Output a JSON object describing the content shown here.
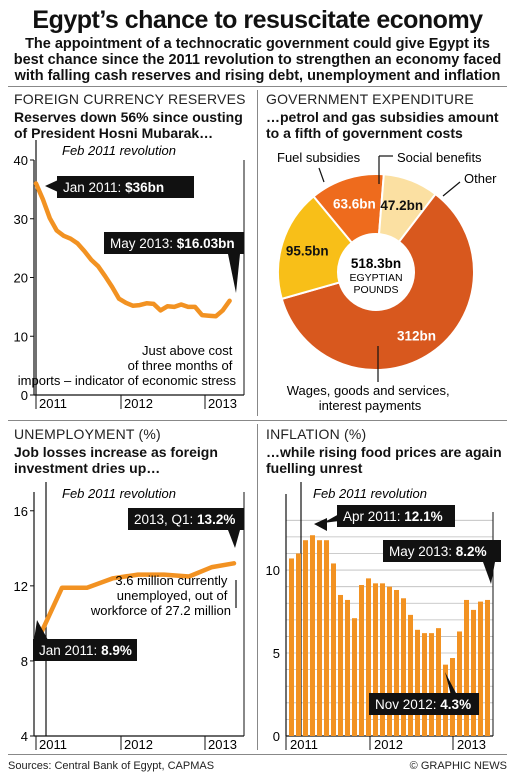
{
  "title": "Egypt’s chance to resuscitate economy",
  "subtitle": "The appointment of a technocratic government could give Egypt its best chance since the 2011 revolution to strengthen an economy faced with falling cash reserves and rising debt, unemployment and inflation",
  "reserves": {
    "heading": "FOREIGN CURRENCY RESERVES",
    "subheading": "Reserves down 56% since ousting of President Hosni Mubarak…",
    "event_label": "Feb 2011 revolution",
    "callout_start_prefix": "Jan 2011: ",
    "callout_start_value": "$36bn",
    "callout_end_prefix": "May 2013: ",
    "callout_end_value": "$16.03bn",
    "note": "Just above cost of three months of imports – indicator of economic stress"
  },
  "expenditure": {
    "heading": "GOVERNMENT EXPENDITURE",
    "subheading": "…petrol and gas subsidies amount to a fifth of government costs",
    "center_value": "518.3bn",
    "center_unit": "EGYPTIAN POUNDS",
    "labels": {
      "fuel": "Fuel subsidies",
      "social": "Social benefits",
      "other": "Other",
      "wages": "Wages, goods and services, interest payments"
    }
  },
  "unemployment": {
    "heading": "UNEMPLOYMENT (%)",
    "subheading": "Job losses increase as foreign investment dries up…",
    "event_label": "Feb 2011 revolution",
    "callout_start_prefix": "Jan 2011: ",
    "callout_start_value": "8.9%",
    "callout_end_prefix": "2013, Q1: ",
    "callout_end_value": "13.2%",
    "note": "3.6 million currently unemployed, out of workforce of 27.2 million"
  },
  "inflation": {
    "heading": "INFLATION (%)",
    "subheading": "…while rising food prices are again fuelling unrest",
    "event_label": "Feb 2011 revolution",
    "callout_peak_prefix": "Apr 2011: ",
    "callout_peak_value": "12.1%",
    "callout_end_prefix": "May 2013: ",
    "callout_end_value": "8.2%",
    "callout_low_prefix": "Nov 2012: ",
    "callout_low_value": "4.3%"
  },
  "footer": {
    "sources": "Sources: Central Bank of Egypt, CAPMAS",
    "credit": "© GRAPHIC NEWS"
  },
  "chart_data": [
    {
      "type": "line",
      "title": "FOREIGN CURRENCY RESERVES",
      "ylabel": "",
      "ylim": [
        0,
        40
      ],
      "yticks": [
        0,
        10,
        20,
        30,
        40
      ],
      "xticks": [
        "2011",
        "2012",
        "2013"
      ],
      "x_range": [
        "2011-01",
        "2013-06"
      ],
      "grid": false,
      "series": [
        {
          "x": [
            "2011-01",
            "2011-02",
            "2011-03",
            "2011-04",
            "2011-05",
            "2011-06",
            "2011-07",
            "2011-08",
            "2011-09",
            "2011-10",
            "2011-11",
            "2011-12",
            "2012-01",
            "2012-02",
            "2012-03",
            "2012-04",
            "2012-05",
            "2012-06",
            "2012-07",
            "2012-08",
            "2012-09",
            "2012-10",
            "2012-11",
            "2012-12",
            "2013-01",
            "2013-02",
            "2013-03",
            "2013-04",
            "2013-05"
          ],
          "values": [
            36,
            33.3,
            30.1,
            28.0,
            27.1,
            26.6,
            25.8,
            24.5,
            23.0,
            21.9,
            20.2,
            18.4,
            16.4,
            15.7,
            15.2,
            15.3,
            15.6,
            15.5,
            14.4,
            15.1,
            15.0,
            15.4,
            15.0,
            15.0,
            13.6,
            13.5,
            13.4,
            14.4,
            16.03
          ]
        }
      ]
    },
    {
      "type": "pie",
      "title": "GOVERNMENT EXPENDITURE",
      "total": 518.3,
      "unit": "EGYPTIAN POUNDS",
      "slices": [
        {
          "name": "Wages, goods and services, interest payments",
          "value": 312,
          "label": "312bn",
          "color": "#d8581e"
        },
        {
          "name": "Fuel subsidies",
          "value": 95.5,
          "label": "95.5bn",
          "color": "#f8bf18"
        },
        {
          "name": "Social benefits",
          "value": 63.6,
          "label": "63.6bn",
          "color": "#ee6b1d"
        },
        {
          "name": "Other",
          "value": 47.2,
          "label": "47.2bn",
          "color": "#fbe0a2"
        }
      ]
    },
    {
      "type": "line",
      "title": "UNEMPLOYMENT (%)",
      "ylim": [
        4,
        17
      ],
      "yticks": [
        4,
        8,
        12,
        16
      ],
      "xticks": [
        "2011",
        "2012",
        "2013"
      ],
      "grid": false,
      "series": [
        {
          "x": [
            "2011 Q1",
            "2011 Q2",
            "2011 Q3",
            "2011 Q4",
            "2012 Q1",
            "2012 Q2",
            "2012 Q3",
            "2012 Q4",
            "2013 Q1"
          ],
          "values": [
            8.9,
            11.9,
            11.9,
            12.4,
            12.6,
            12.6,
            12.5,
            13.0,
            13.2
          ]
        }
      ]
    },
    {
      "type": "bar",
      "title": "INFLATION (%)",
      "ylim": [
        0,
        13.5
      ],
      "yticks": [
        0,
        5,
        10
      ],
      "xticks": [
        "2011",
        "2012",
        "2013"
      ],
      "grid": true,
      "categories": [
        "2011-01",
        "2011-02",
        "2011-03",
        "2011-04",
        "2011-05",
        "2011-06",
        "2011-07",
        "2011-08",
        "2011-09",
        "2011-10",
        "2011-11",
        "2011-12",
        "2012-01",
        "2012-02",
        "2012-03",
        "2012-04",
        "2012-05",
        "2012-06",
        "2012-07",
        "2012-08",
        "2012-09",
        "2012-10",
        "2012-11",
        "2012-12",
        "2013-01",
        "2013-02",
        "2013-03",
        "2013-04",
        "2013-05"
      ],
      "values": [
        10.7,
        11.0,
        11.8,
        12.1,
        11.8,
        11.8,
        10.4,
        8.5,
        8.2,
        7.1,
        9.1,
        9.5,
        9.2,
        9.2,
        9.0,
        8.8,
        8.3,
        7.3,
        6.4,
        6.2,
        6.2,
        6.5,
        4.3,
        4.7,
        6.3,
        8.2,
        7.6,
        8.1,
        8.2
      ],
      "color": "#f29222"
    }
  ]
}
